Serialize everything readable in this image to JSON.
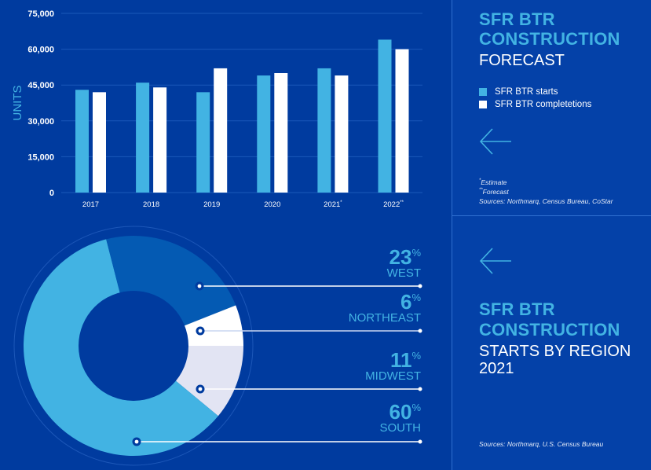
{
  "panel1": {
    "title_line1": "SFR BTR",
    "title_line2": "CONSTRUCTION",
    "subtitle": "FORECAST",
    "legend": [
      {
        "label": "SFR BTR starts",
        "color": "#42b3e3"
      },
      {
        "label": "SFR  BTR completetions",
        "color": "#ffffff"
      }
    ],
    "arrow_icon": "left-arrow",
    "notes": {
      "estimate_mark": "*",
      "estimate": "Estimate",
      "forecast_mark": "**",
      "forecast": "Forecast",
      "sources": "Sources: Northmarq, Census Bureau, CoStar"
    }
  },
  "panel2": {
    "arrow_icon": "left-arrow",
    "title_line1": "SFR BTR",
    "title_line2": "CONSTRUCTION",
    "subtitle": "STARTS BY REGION 2021",
    "sources": "Sources: Northmarq, U.S. Census Bureau"
  },
  "colors": {
    "background": "#003b9f",
    "panel": "#0441a8",
    "accent": "#42b3e3",
    "white": "#ffffff",
    "west": "#045ab3",
    "midwest": "#e2e4f3",
    "gridline": "#1a58b8"
  },
  "chart_data": [
    {
      "type": "bar",
      "title": "SFR BTR Construction Forecast",
      "xlabel": "",
      "ylabel": "UNITS",
      "ylim": [
        0,
        75000
      ],
      "yticks": [
        0,
        15000,
        30000,
        45000,
        60000,
        75000
      ],
      "ytick_labels": [
        "0",
        "15,000",
        "30,000",
        "45,000",
        "60,000",
        "75,000"
      ],
      "categories": [
        "2017",
        "2018",
        "2019",
        "2020",
        "2021",
        "2022"
      ],
      "category_marks": [
        "",
        "",
        "",
        "",
        "*",
        "**"
      ],
      "grid": true,
      "legend_position": "right",
      "series": [
        {
          "name": "SFR BTR starts",
          "color": "#42b3e3",
          "values": [
            43000,
            46000,
            42000,
            49000,
            52000,
            64000
          ]
        },
        {
          "name": "SFR BTR completetions",
          "color": "#ffffff",
          "values": [
            42000,
            44000,
            52000,
            50000,
            49000,
            60000
          ]
        }
      ]
    },
    {
      "type": "pie",
      "variant": "donut",
      "title": "SFR BTR Construction Starts by Region 2021",
      "unit": "%",
      "slices": [
        {
          "label": "WEST",
          "value": 23,
          "color": "#045ab3"
        },
        {
          "label": "NORTHEAST",
          "value": 6,
          "color": "#ffffff"
        },
        {
          "label": "MIDWEST",
          "value": 11,
          "color": "#e2e4f3"
        },
        {
          "label": "SOUTH",
          "value": 60,
          "color": "#42b3e3"
        }
      ],
      "draw_order": [
        "MIDWEST",
        "SOUTH",
        "WEST",
        "NORTHEAST"
      ]
    }
  ]
}
